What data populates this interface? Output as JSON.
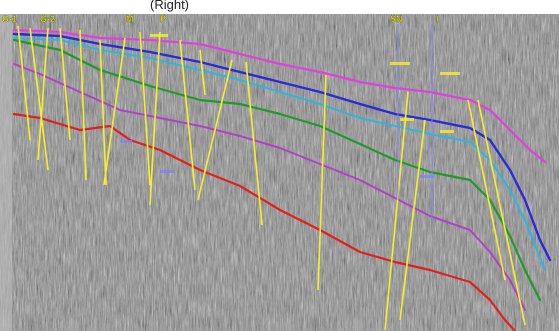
{
  "caption": "(Right)",
  "well_labels": [
    "G-1",
    "G-2",
    "M",
    "P",
    "SN",
    "I"
  ],
  "horizon_colors": {
    "magenta_top": "#e040e0",
    "blue": "#2a2ad8",
    "cyan": "#22b8e8",
    "green": "#1f9a2a",
    "purple": "#b040c8",
    "red": "#e02020",
    "fault": "#f5f02a"
  }
}
